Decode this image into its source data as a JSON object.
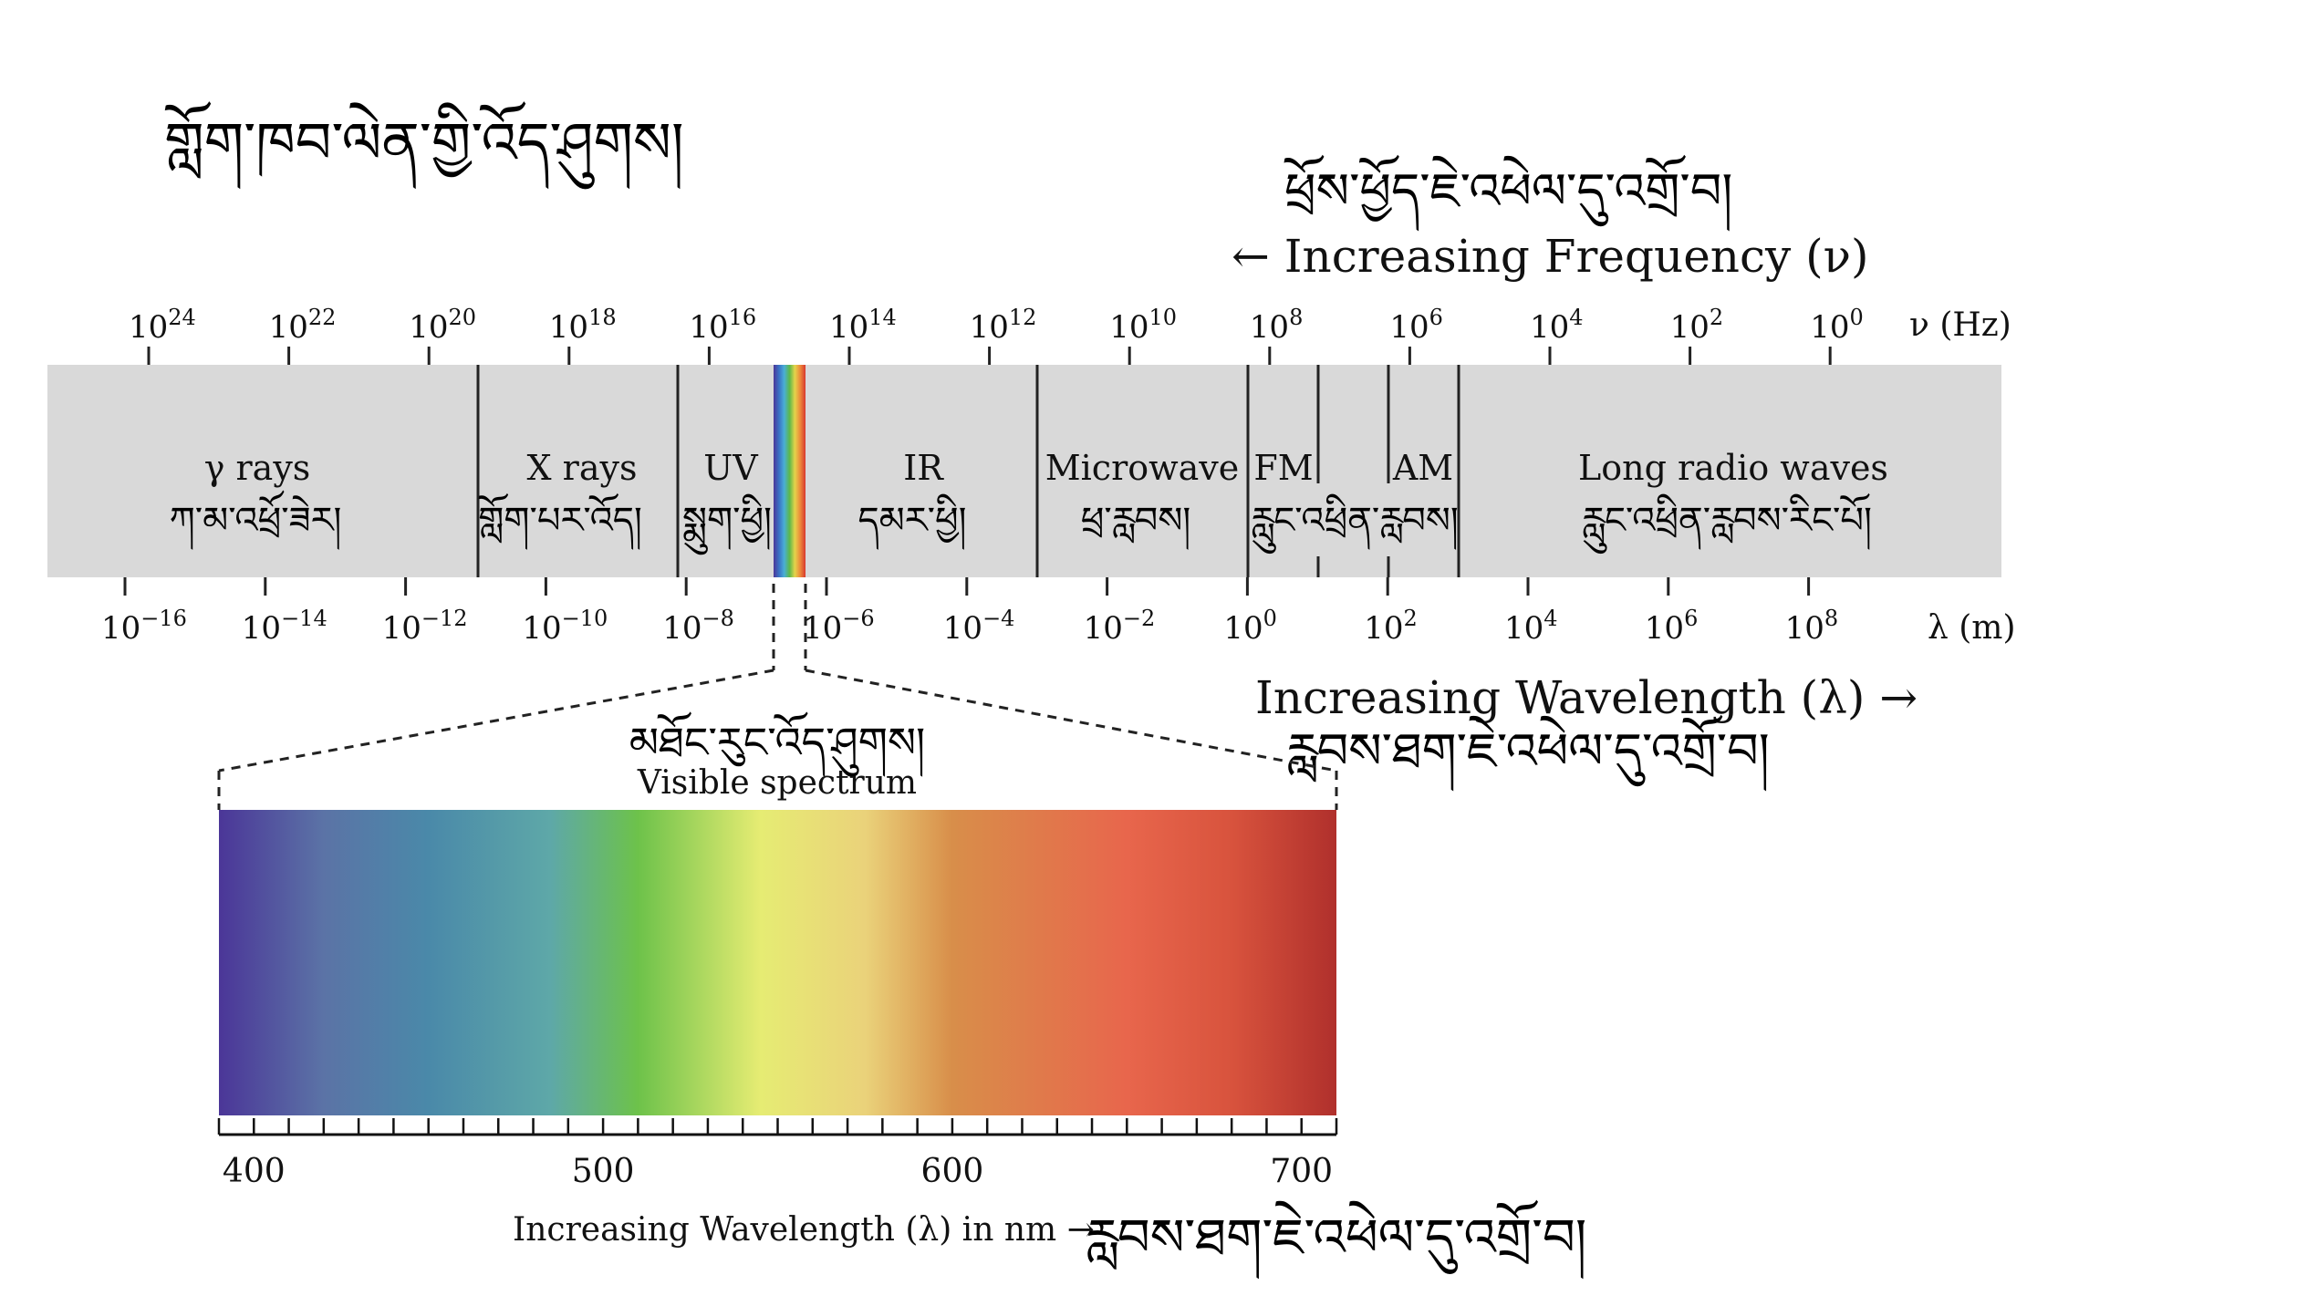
{
  "title_tibetan": "གློག་ཁབ་ལེན་གྱི་འོད་ཤུགས།",
  "frequency": {
    "heading_tibetan": "ཕྲོས་ཕྱོད་ཇེ་འཕེལ་དུ་འགྲོ་བ།",
    "heading": "← Increasing Frequency (ν)",
    "unit": "ν (Hz)",
    "ticks": [
      {
        "base": "10",
        "exp": "24"
      },
      {
        "base": "10",
        "exp": "22"
      },
      {
        "base": "10",
        "exp": "20"
      },
      {
        "base": "10",
        "exp": "18"
      },
      {
        "base": "10",
        "exp": "16"
      },
      {
        "base": "10",
        "exp": "14"
      },
      {
        "base": "10",
        "exp": "12"
      },
      {
        "base": "10",
        "exp": "10"
      },
      {
        "base": "10",
        "exp": "8"
      },
      {
        "base": "10",
        "exp": "6"
      },
      {
        "base": "10",
        "exp": "4"
      },
      {
        "base": "10",
        "exp": "2"
      },
      {
        "base": "10",
        "exp": "0"
      }
    ]
  },
  "wavelength": {
    "unit": "λ (m)",
    "heading": "Increasing Wavelength (λ) →",
    "heading_tibetan": "རླབས་ཐག་ཇེ་འཕེལ་དུ་འགྲོ་བ།",
    "ticks": [
      {
        "base": "10",
        "exp": "−16"
      },
      {
        "base": "10",
        "exp": "−14"
      },
      {
        "base": "10",
        "exp": "−12"
      },
      {
        "base": "10",
        "exp": "−10"
      },
      {
        "base": "10",
        "exp": "−8"
      },
      {
        "base": "10",
        "exp": "−6"
      },
      {
        "base": "10",
        "exp": "−4"
      },
      {
        "base": "10",
        "exp": "−2"
      },
      {
        "base": "10",
        "exp": "0"
      },
      {
        "base": "10",
        "exp": "2"
      },
      {
        "base": "10",
        "exp": "4"
      },
      {
        "base": "10",
        "exp": "6"
      },
      {
        "base": "10",
        "exp": "8"
      }
    ]
  },
  "bands": [
    {
      "id": "gamma",
      "label": "γ rays",
      "label_tibetan": "ཀ་མ་འཕྲོ་ཟེར།"
    },
    {
      "id": "xray",
      "label": "X rays",
      "label_tibetan": "གློག་པར་འོད།"
    },
    {
      "id": "uv",
      "label": "UV",
      "label_tibetan": "སྨུག་ཕྱི།"
    },
    {
      "id": "ir",
      "label": "IR",
      "label_tibetan": "དམར་ཕྱི།"
    },
    {
      "id": "microwave",
      "label": "Microwave",
      "label_tibetan": "ཕྲ་རླབས།"
    },
    {
      "id": "fm",
      "label": "FM",
      "label_tibetan": ""
    },
    {
      "id": "am",
      "label": "AM",
      "label_tibetan": ""
    },
    {
      "id": "radio_fm_am_tibetan",
      "label": "",
      "label_tibetan": "རླུང་འཕྲིན་རླབས།"
    },
    {
      "id": "long_radio",
      "label": "Long radio waves",
      "label_tibetan": "རླུང་འཕྲིན་རླབས་རིང་པོ།"
    }
  ],
  "visible": {
    "label_tibetan": "མཐོང་རུང་འོད་ཤུགས།",
    "label": "Visible spectrum",
    "axis_label": "Increasing Wavelength (λ) in nm →",
    "axis_label_tibetan": "རླབས་ཐག་ཇེ་འཕེལ་དུ་འགྲོ་བ།",
    "ticks": [
      "400",
      "500",
      "600",
      "700"
    ],
    "range_nm": [
      390,
      710
    ],
    "gradient_stops": [
      {
        "nm": 390,
        "color": "#4b3698"
      },
      {
        "nm": 420,
        "color": "#5b73a6"
      },
      {
        "nm": 450,
        "color": "#4a89a9"
      },
      {
        "nm": 485,
        "color": "#5ea8a8"
      },
      {
        "nm": 510,
        "color": "#6dc24a"
      },
      {
        "nm": 545,
        "color": "#e6ec73"
      },
      {
        "nm": 575,
        "color": "#ead27a"
      },
      {
        "nm": 600,
        "color": "#d88e4a"
      },
      {
        "nm": 650,
        "color": "#e8664c"
      },
      {
        "nm": 680,
        "color": "#d8533d"
      },
      {
        "nm": 710,
        "color": "#b0302c"
      }
    ]
  },
  "colors": {
    "band_fill": "#d9d9d9",
    "rainbow": [
      "#4b3698",
      "#3a70c4",
      "#49aed6",
      "#5cb84a",
      "#e5d44a",
      "#ec8a3a",
      "#d8382e"
    ]
  }
}
